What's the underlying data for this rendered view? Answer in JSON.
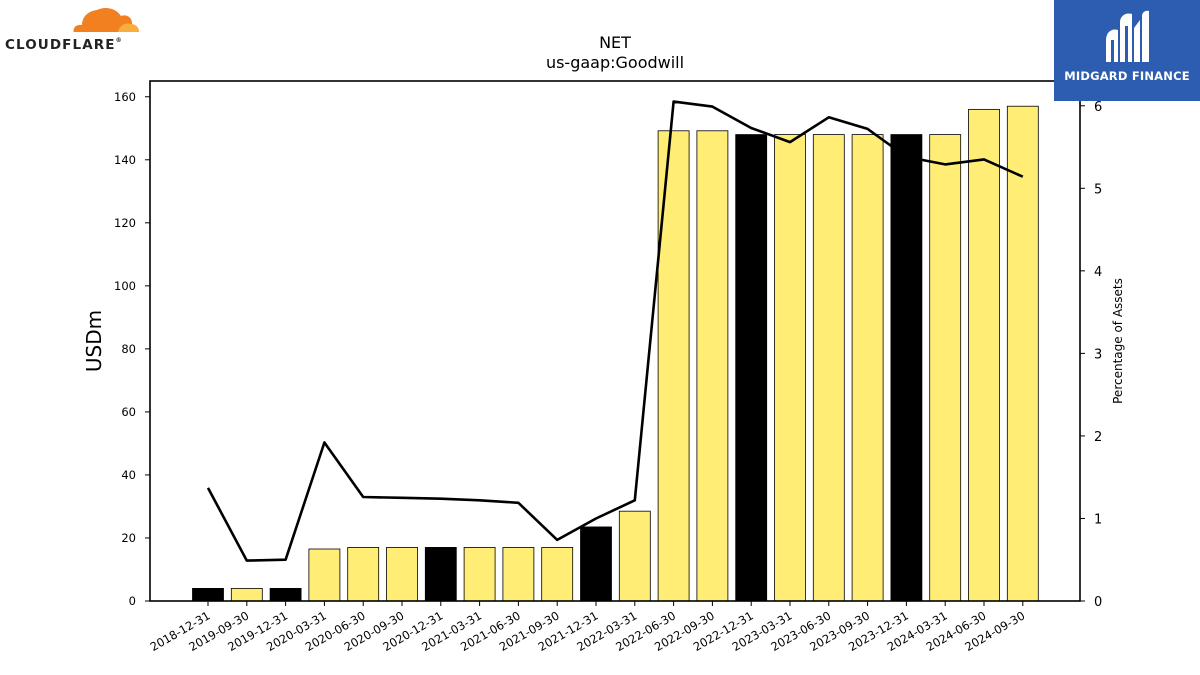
{
  "logos": {
    "left_text": "CLOUDFLARE",
    "left_mark": "®",
    "right_text": "MIDGARD FINANCE"
  },
  "chart_data": {
    "type": "bar",
    "title": "NET",
    "subtitle": "us-gaap:Goodwill",
    "ylabel": "USDm",
    "y2label": "Percentage of Assets",
    "ylim": [
      0,
      165
    ],
    "y2lim": [
      0,
      6.3
    ],
    "yticks": [
      0,
      20,
      40,
      60,
      80,
      100,
      120,
      140,
      160
    ],
    "y2ticks": [
      0,
      1,
      2,
      3,
      4,
      5,
      6
    ],
    "categories": [
      "2018-12-31",
      "2019-09-30",
      "2019-12-31",
      "2020-03-31",
      "2020-06-30",
      "2020-09-30",
      "2020-12-31",
      "2021-03-31",
      "2021-06-30",
      "2021-09-30",
      "2021-12-31",
      "2022-03-31",
      "2022-06-30",
      "2022-09-30",
      "2022-12-31",
      "2023-03-31",
      "2023-06-30",
      "2023-09-30",
      "2023-12-31",
      "2024-03-31",
      "2024-06-30",
      "2024-09-30"
    ],
    "series": [
      {
        "type": "bar",
        "values": [
          4,
          4,
          4,
          16.5,
          17,
          17,
          17,
          17,
          17,
          17,
          23.5,
          28.5,
          149.2,
          149.2,
          148,
          148,
          148,
          148,
          148,
          148,
          156,
          157
        ],
        "bar_colors": [
          "#000000",
          "#ffed75",
          "#000000",
          "#ffed75",
          "#ffed75",
          "#ffed75",
          "#000000",
          "#ffed75",
          "#ffed75",
          "#ffed75",
          "#000000",
          "#ffed75",
          "#ffed75",
          "#ffed75",
          "#000000",
          "#ffed75",
          "#ffed75",
          "#ffed75",
          "#000000",
          "#ffed75",
          "#ffed75",
          "#ffed75"
        ]
      },
      {
        "type": "line",
        "axis": "right",
        "color": "#000000",
        "values": [
          1.37,
          0.49,
          0.5,
          1.92,
          1.26,
          1.25,
          1.24,
          1.22,
          1.19,
          0.74,
          1.0,
          1.22,
          6.05,
          5.99,
          5.73,
          5.56,
          5.86,
          5.72,
          5.38,
          5.29,
          5.35,
          5.14
        ]
      }
    ],
    "grid": false
  }
}
